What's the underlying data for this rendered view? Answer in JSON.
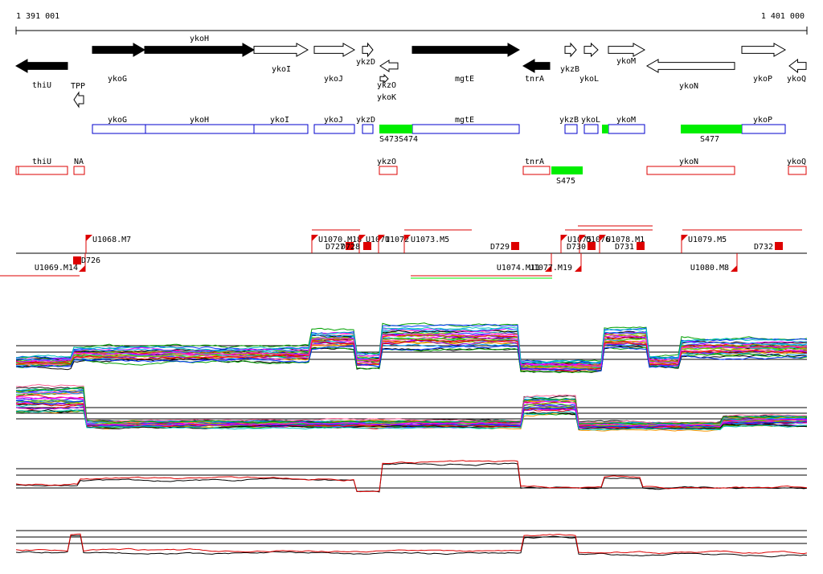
{
  "ruler": {
    "start_label": "1 391 001",
    "end_label": "1 401 000"
  },
  "colors": {
    "black": "#000000",
    "blue": "#0000cc",
    "red": "#dd0000",
    "green": "#00ee00",
    "grey": "#999999"
  },
  "genes": [
    {
      "label": "thiU",
      "strand": "-",
      "filled": true
    },
    {
      "label": "ykoG",
      "strand": "+",
      "filled": true
    },
    {
      "label": "ykoH",
      "strand": "+",
      "filled": true
    },
    {
      "label": "ykoI",
      "strand": "+",
      "filled": false
    },
    {
      "label": "ykoJ",
      "strand": "+",
      "filled": false
    },
    {
      "label": "ykzD",
      "strand": "+",
      "filled": false
    },
    {
      "label": "ykzO",
      "strand": "-",
      "filled": false
    },
    {
      "label": "ykoK",
      "strand": "+",
      "filled": false
    },
    {
      "label": "mgtE",
      "strand": "+",
      "filled": true
    },
    {
      "label": "tnrA",
      "strand": "-",
      "filled": true
    },
    {
      "label": "ykzB",
      "strand": "+",
      "filled": false
    },
    {
      "label": "ykoL",
      "strand": "+",
      "filled": false
    },
    {
      "label": "ykoM",
      "strand": "+",
      "filled": false
    },
    {
      "label": "ykoN",
      "strand": "-",
      "filled": false
    },
    {
      "label": "ykoP",
      "strand": "+",
      "filled": false
    },
    {
      "label": "ykoQ",
      "strand": "-",
      "filled": false
    },
    {
      "label": "TPP",
      "strand": "-",
      "filled": false
    }
  ],
  "plus_transcripts": [
    {
      "label": "ykoG"
    },
    {
      "label": "ykoH"
    },
    {
      "label": "ykoI"
    },
    {
      "label": "ykoJ"
    },
    {
      "label": "ykzD"
    },
    {
      "label": "mgtE"
    },
    {
      "label": "ykzB"
    },
    {
      "label": "ykoL"
    },
    {
      "label": "ykoM"
    },
    {
      "label": "ykoP"
    }
  ],
  "plus_segments": [
    {
      "label": "S473"
    },
    {
      "label": "S474"
    },
    {
      "label": "S477"
    }
  ],
  "minus_transcripts": [
    {
      "label": "thiU"
    },
    {
      "label": "NA"
    },
    {
      "label": "ykzO"
    },
    {
      "label": "tnrA"
    },
    {
      "label": "ykoN"
    },
    {
      "label": "ykoQ"
    }
  ],
  "minus_segments": [
    {
      "label": "S475"
    }
  ],
  "upshifts_plus": [
    {
      "label": "U1068.M7"
    },
    {
      "label": "U1070.M18"
    },
    {
      "label": "U1071"
    },
    {
      "label": "U1072"
    },
    {
      "label": "U1073.M5"
    },
    {
      "label": "U1075"
    },
    {
      "label": "U1076"
    },
    {
      "label": "U1078.M1"
    },
    {
      "label": "U1079.M5"
    }
  ],
  "downshifts_plus": [
    {
      "label": "D727"
    },
    {
      "label": "D728"
    },
    {
      "label": "D729"
    },
    {
      "label": "D730"
    },
    {
      "label": "D731"
    },
    {
      "label": "D732"
    }
  ],
  "upshifts_minus": [
    {
      "label": "U1069.M14"
    },
    {
      "label": "U1074.M11"
    },
    {
      "label": "U1077.M19"
    },
    {
      "label": "U1080.M8"
    }
  ],
  "downshifts_minus": [
    {
      "label": "D726"
    }
  ]
}
